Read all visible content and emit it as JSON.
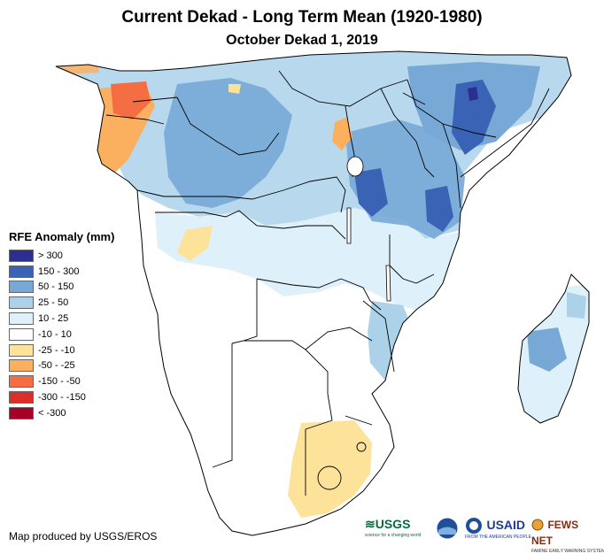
{
  "title": "Current Dekad - Long Term Mean (1920-1980)",
  "subtitle": "October Dekad 1, 2019",
  "legend": {
    "title": "RFE Anomaly (mm)",
    "items": [
      {
        "label": "> 300",
        "color": "#2b2f8f"
      },
      {
        "label": "150 - 300",
        "color": "#3a63b5"
      },
      {
        "label": "50 - 150",
        "color": "#77a8d6"
      },
      {
        "label": "25 - 50",
        "color": "#acd2ea"
      },
      {
        "label": "10 - 25",
        "color": "#def0f9"
      },
      {
        "label": "-10 - 10",
        "color": "#ffffff"
      },
      {
        "label": "-25 - -10",
        "color": "#fde29a"
      },
      {
        "label": "-50 - -25",
        "color": "#fbb05f"
      },
      {
        "label": "-150 - -50",
        "color": "#f46d43"
      },
      {
        "label": "-300 - -150",
        "color": "#d9302a"
      },
      {
        "label": "< -300",
        "color": "#a50026"
      }
    ]
  },
  "credit": "Map produced by USGS/EROS",
  "logos": {
    "usgs": {
      "name": "USGS",
      "tagline": "science for a changing world"
    },
    "noaa": {
      "name": "NOAA"
    },
    "usaid": {
      "name": "USAID",
      "tagline": "FROM THE AMERICAN PEOPLE"
    },
    "fewsnet": {
      "name": "FEWS NET",
      "tagline": "FAMINE EARLY WARNING SYSTEMS NETWORK"
    }
  }
}
